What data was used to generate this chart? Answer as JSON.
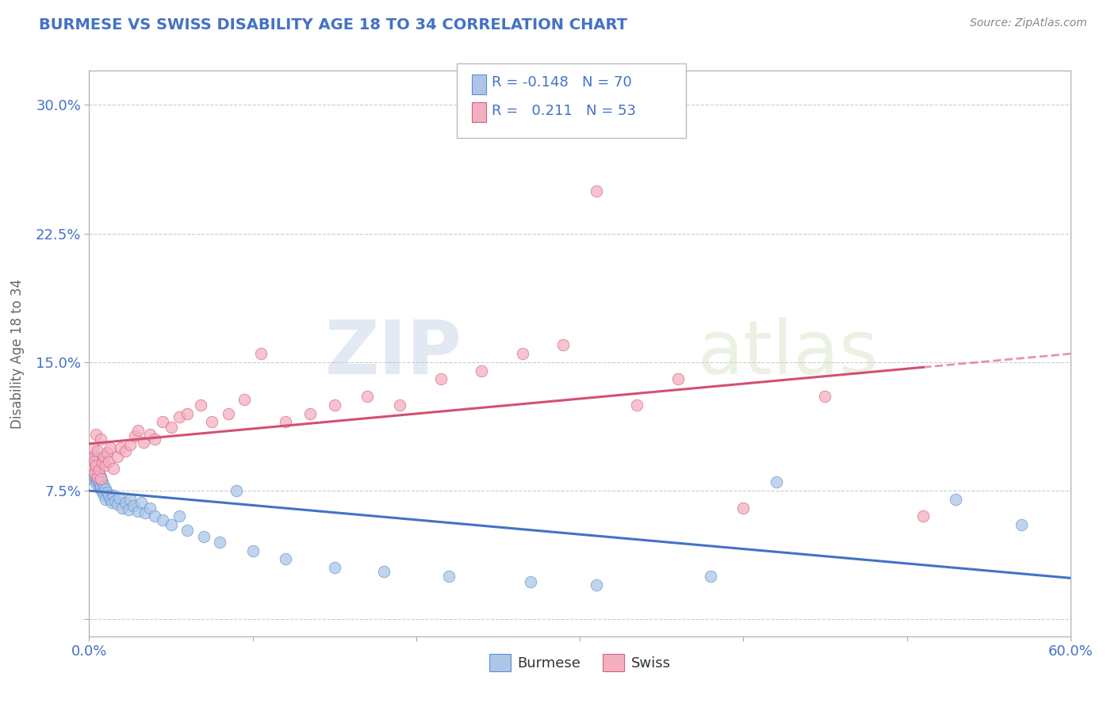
{
  "title": "BURMESE VS SWISS DISABILITY AGE 18 TO 34 CORRELATION CHART",
  "source": "Source: ZipAtlas.com",
  "ylabel": "Disability Age 18 to 34",
  "xlim": [
    0.0,
    0.6
  ],
  "ylim": [
    -0.01,
    0.32
  ],
  "xticks": [
    0.0,
    0.1,
    0.2,
    0.3,
    0.4,
    0.5,
    0.6
  ],
  "xtick_labels": [
    "0.0%",
    "",
    "",
    "",
    "",
    "",
    "60.0%"
  ],
  "yticks": [
    0.0,
    0.075,
    0.15,
    0.225,
    0.3
  ],
  "ytick_labels": [
    "",
    "7.5%",
    "15.0%",
    "22.5%",
    "30.0%"
  ],
  "burmese_color": "#adc6e8",
  "swiss_color": "#f4afc0",
  "burmese_edge_color": "#5b8fcc",
  "swiss_edge_color": "#d46080",
  "burmese_line_color": "#4472c4",
  "swiss_line_color": "#d45070",
  "burmese_R": -0.148,
  "burmese_N": 70,
  "swiss_R": 0.211,
  "swiss_N": 53,
  "watermark_zip": "ZIP",
  "watermark_atlas": "atlas",
  "background_color": "#ffffff",
  "grid_color": "#cccccc",
  "title_color": "#4472c4",
  "source_color": "#888888",
  "legend_text_color": "#4472c4",
  "burmese_scatter_x": [
    0.001,
    0.001,
    0.001,
    0.001,
    0.002,
    0.002,
    0.002,
    0.002,
    0.002,
    0.003,
    0.003,
    0.003,
    0.003,
    0.003,
    0.004,
    0.004,
    0.004,
    0.004,
    0.005,
    0.005,
    0.005,
    0.005,
    0.006,
    0.006,
    0.006,
    0.007,
    0.007,
    0.007,
    0.008,
    0.008,
    0.009,
    0.009,
    0.01,
    0.01,
    0.011,
    0.012,
    0.013,
    0.014,
    0.015,
    0.016,
    0.017,
    0.018,
    0.02,
    0.022,
    0.024,
    0.025,
    0.027,
    0.03,
    0.032,
    0.034,
    0.037,
    0.04,
    0.045,
    0.05,
    0.055,
    0.06,
    0.07,
    0.08,
    0.09,
    0.1,
    0.12,
    0.15,
    0.18,
    0.22,
    0.27,
    0.31,
    0.38,
    0.42,
    0.53,
    0.57
  ],
  "burmese_scatter_y": [
    0.09,
    0.088,
    0.093,
    0.086,
    0.085,
    0.092,
    0.087,
    0.095,
    0.082,
    0.088,
    0.091,
    0.083,
    0.095,
    0.086,
    0.082,
    0.089,
    0.085,
    0.079,
    0.08,
    0.087,
    0.083,
    0.091,
    0.078,
    0.085,
    0.08,
    0.076,
    0.083,
    0.078,
    0.074,
    0.08,
    0.072,
    0.078,
    0.07,
    0.076,
    0.074,
    0.072,
    0.07,
    0.068,
    0.072,
    0.069,
    0.067,
    0.071,
    0.065,
    0.068,
    0.064,
    0.07,
    0.066,
    0.063,
    0.068,
    0.062,
    0.065,
    0.06,
    0.058,
    0.055,
    0.06,
    0.052,
    0.048,
    0.045,
    0.075,
    0.04,
    0.035,
    0.03,
    0.028,
    0.025,
    0.022,
    0.02,
    0.025,
    0.08,
    0.07,
    0.055
  ],
  "swiss_scatter_x": [
    0.001,
    0.001,
    0.002,
    0.002,
    0.003,
    0.003,
    0.004,
    0.004,
    0.005,
    0.005,
    0.006,
    0.007,
    0.007,
    0.008,
    0.009,
    0.01,
    0.011,
    0.012,
    0.013,
    0.015,
    0.017,
    0.019,
    0.022,
    0.025,
    0.028,
    0.03,
    0.033,
    0.037,
    0.04,
    0.045,
    0.05,
    0.055,
    0.06,
    0.068,
    0.075,
    0.085,
    0.095,
    0.105,
    0.12,
    0.135,
    0.15,
    0.17,
    0.19,
    0.215,
    0.24,
    0.265,
    0.29,
    0.31,
    0.335,
    0.36,
    0.4,
    0.45,
    0.51
  ],
  "swiss_scatter_y": [
    0.088,
    0.095,
    0.09,
    0.1,
    0.085,
    0.092,
    0.09,
    0.108,
    0.083,
    0.098,
    0.087,
    0.082,
    0.105,
    0.091,
    0.095,
    0.09,
    0.097,
    0.092,
    0.1,
    0.088,
    0.095,
    0.1,
    0.098,
    0.102,
    0.107,
    0.11,
    0.103,
    0.108,
    0.105,
    0.115,
    0.112,
    0.118,
    0.12,
    0.125,
    0.115,
    0.12,
    0.128,
    0.155,
    0.115,
    0.12,
    0.125,
    0.13,
    0.125,
    0.14,
    0.145,
    0.155,
    0.16,
    0.25,
    0.125,
    0.14,
    0.065,
    0.13,
    0.06
  ]
}
